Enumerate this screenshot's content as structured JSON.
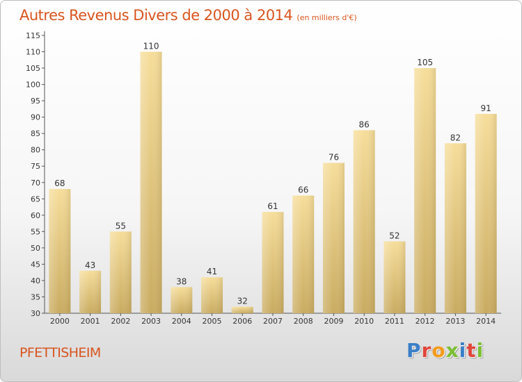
{
  "title": "Autres Revenus Divers de 2000 à 2014",
  "subtitle": "(en milliers d'€)",
  "town": "PFETTISHEIM",
  "brand": "Proxiti",
  "brand_colors": [
    "#3a7fc8",
    "#e0463b",
    "#f39b1c",
    "#7bbf32",
    "#3a7fc8",
    "#e0463b",
    "#7bbf32"
  ],
  "colors": {
    "accent": "#d9541e",
    "bar_light": "#f6dd9a",
    "bar_dark": "#c9ab60"
  },
  "chart_data": {
    "type": "bar",
    "title": "Autres Revenus Divers de 2000 à 2014",
    "subtitle": "(en milliers d'€)",
    "categories": [
      "2000",
      "2001",
      "2002",
      "2003",
      "2004",
      "2005",
      "2006",
      "2007",
      "2008",
      "2009",
      "2010",
      "2011",
      "2012",
      "2013",
      "2014"
    ],
    "values": [
      68,
      43,
      55,
      110,
      38,
      41,
      32,
      61,
      66,
      76,
      86,
      52,
      105,
      82,
      91
    ],
    "xlabel": "",
    "ylabel": "",
    "ylim": [
      30,
      115
    ],
    "yticks": [
      30,
      35,
      40,
      45,
      50,
      55,
      60,
      65,
      70,
      75,
      80,
      85,
      90,
      95,
      100,
      105,
      110,
      115
    ],
    "grid": false,
    "legend": "none"
  }
}
